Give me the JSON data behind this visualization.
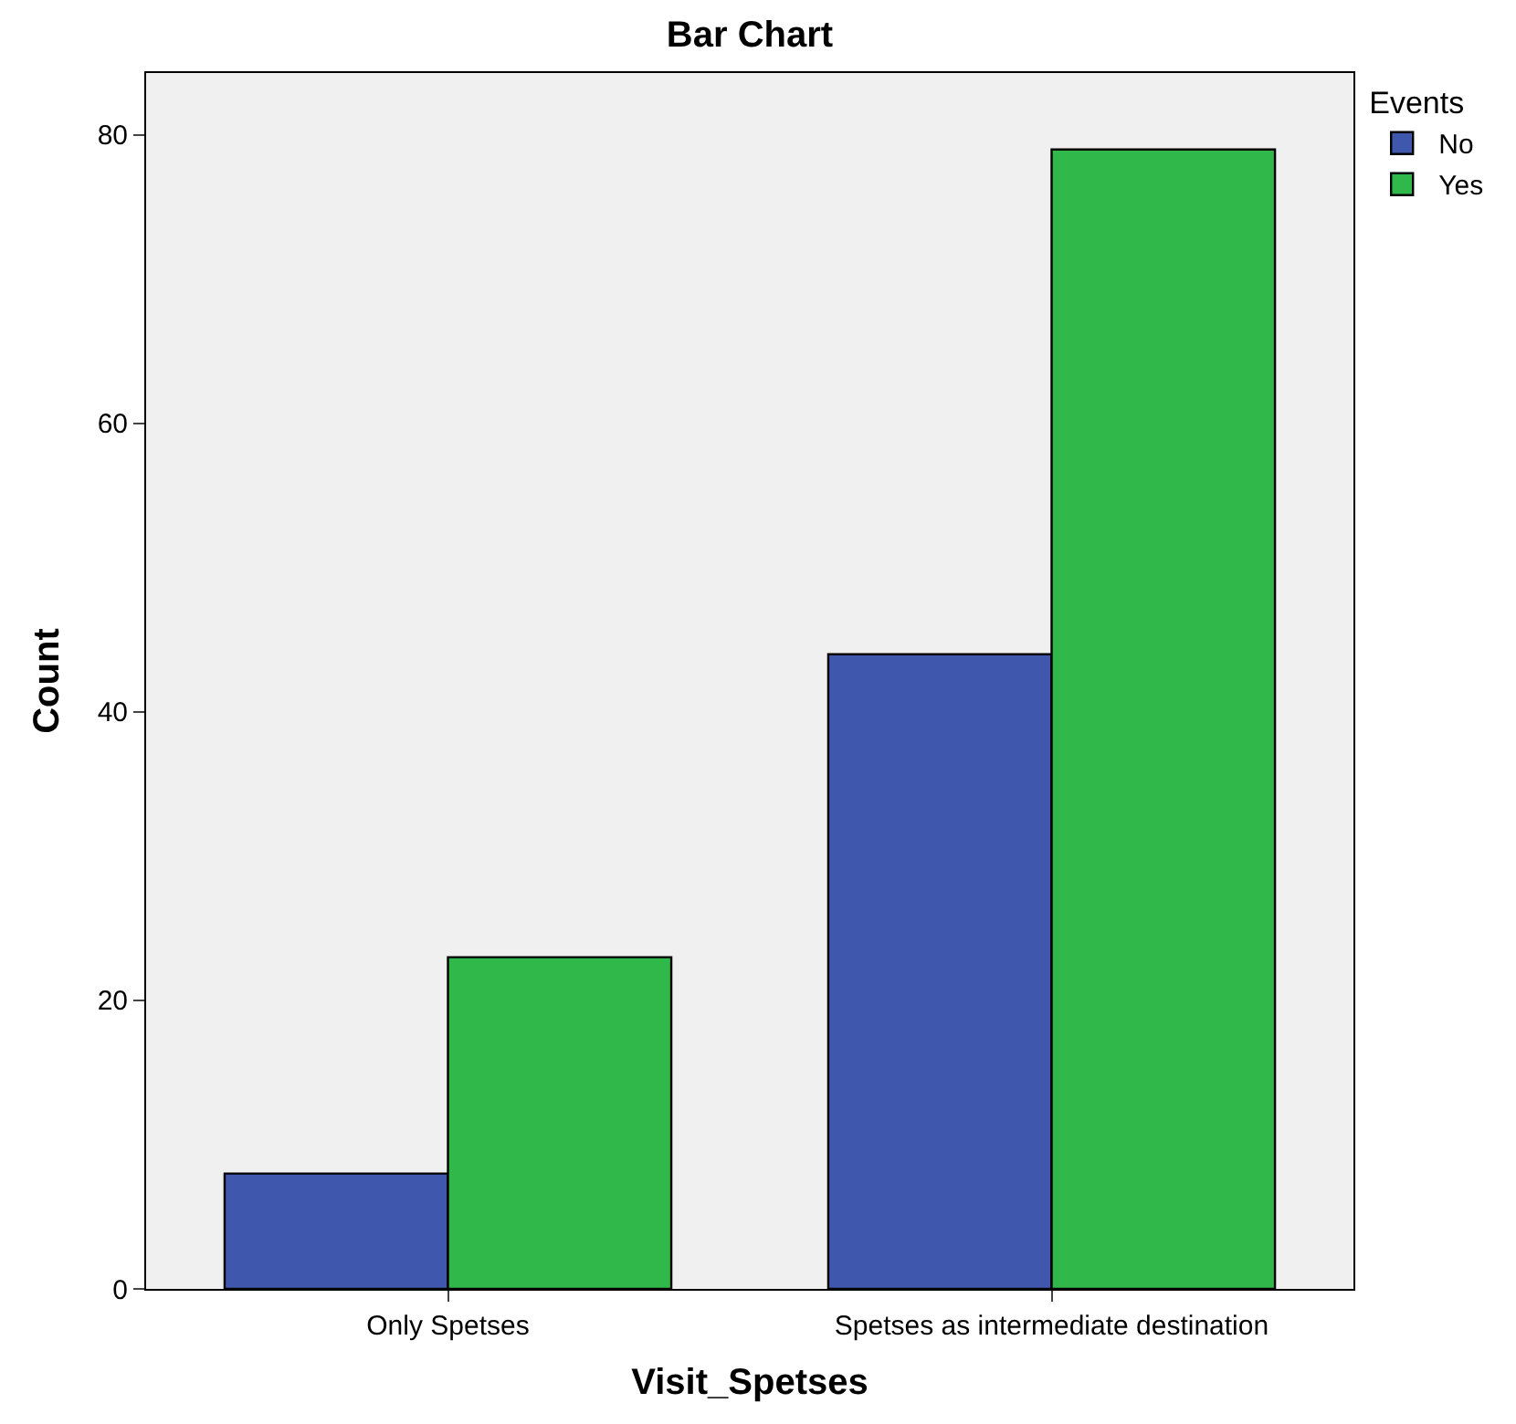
{
  "chart_data": {
    "type": "bar",
    "title": "Bar Chart",
    "xlabel": "Visit_Spetses",
    "ylabel": "Count",
    "legend_title": "Events",
    "categories": [
      "Only Spetses",
      "Spetses as intermediate destination"
    ],
    "series": [
      {
        "name": "No",
        "color": "#3f58ad",
        "values": [
          8,
          44
        ]
      },
      {
        "name": "Yes",
        "color": "#31b84a",
        "values": [
          23,
          79
        ]
      }
    ],
    "ylim": [
      0,
      84.3
    ],
    "yticks": [
      0,
      20,
      40,
      60,
      80
    ],
    "grid": false,
    "legend": "top right"
  }
}
